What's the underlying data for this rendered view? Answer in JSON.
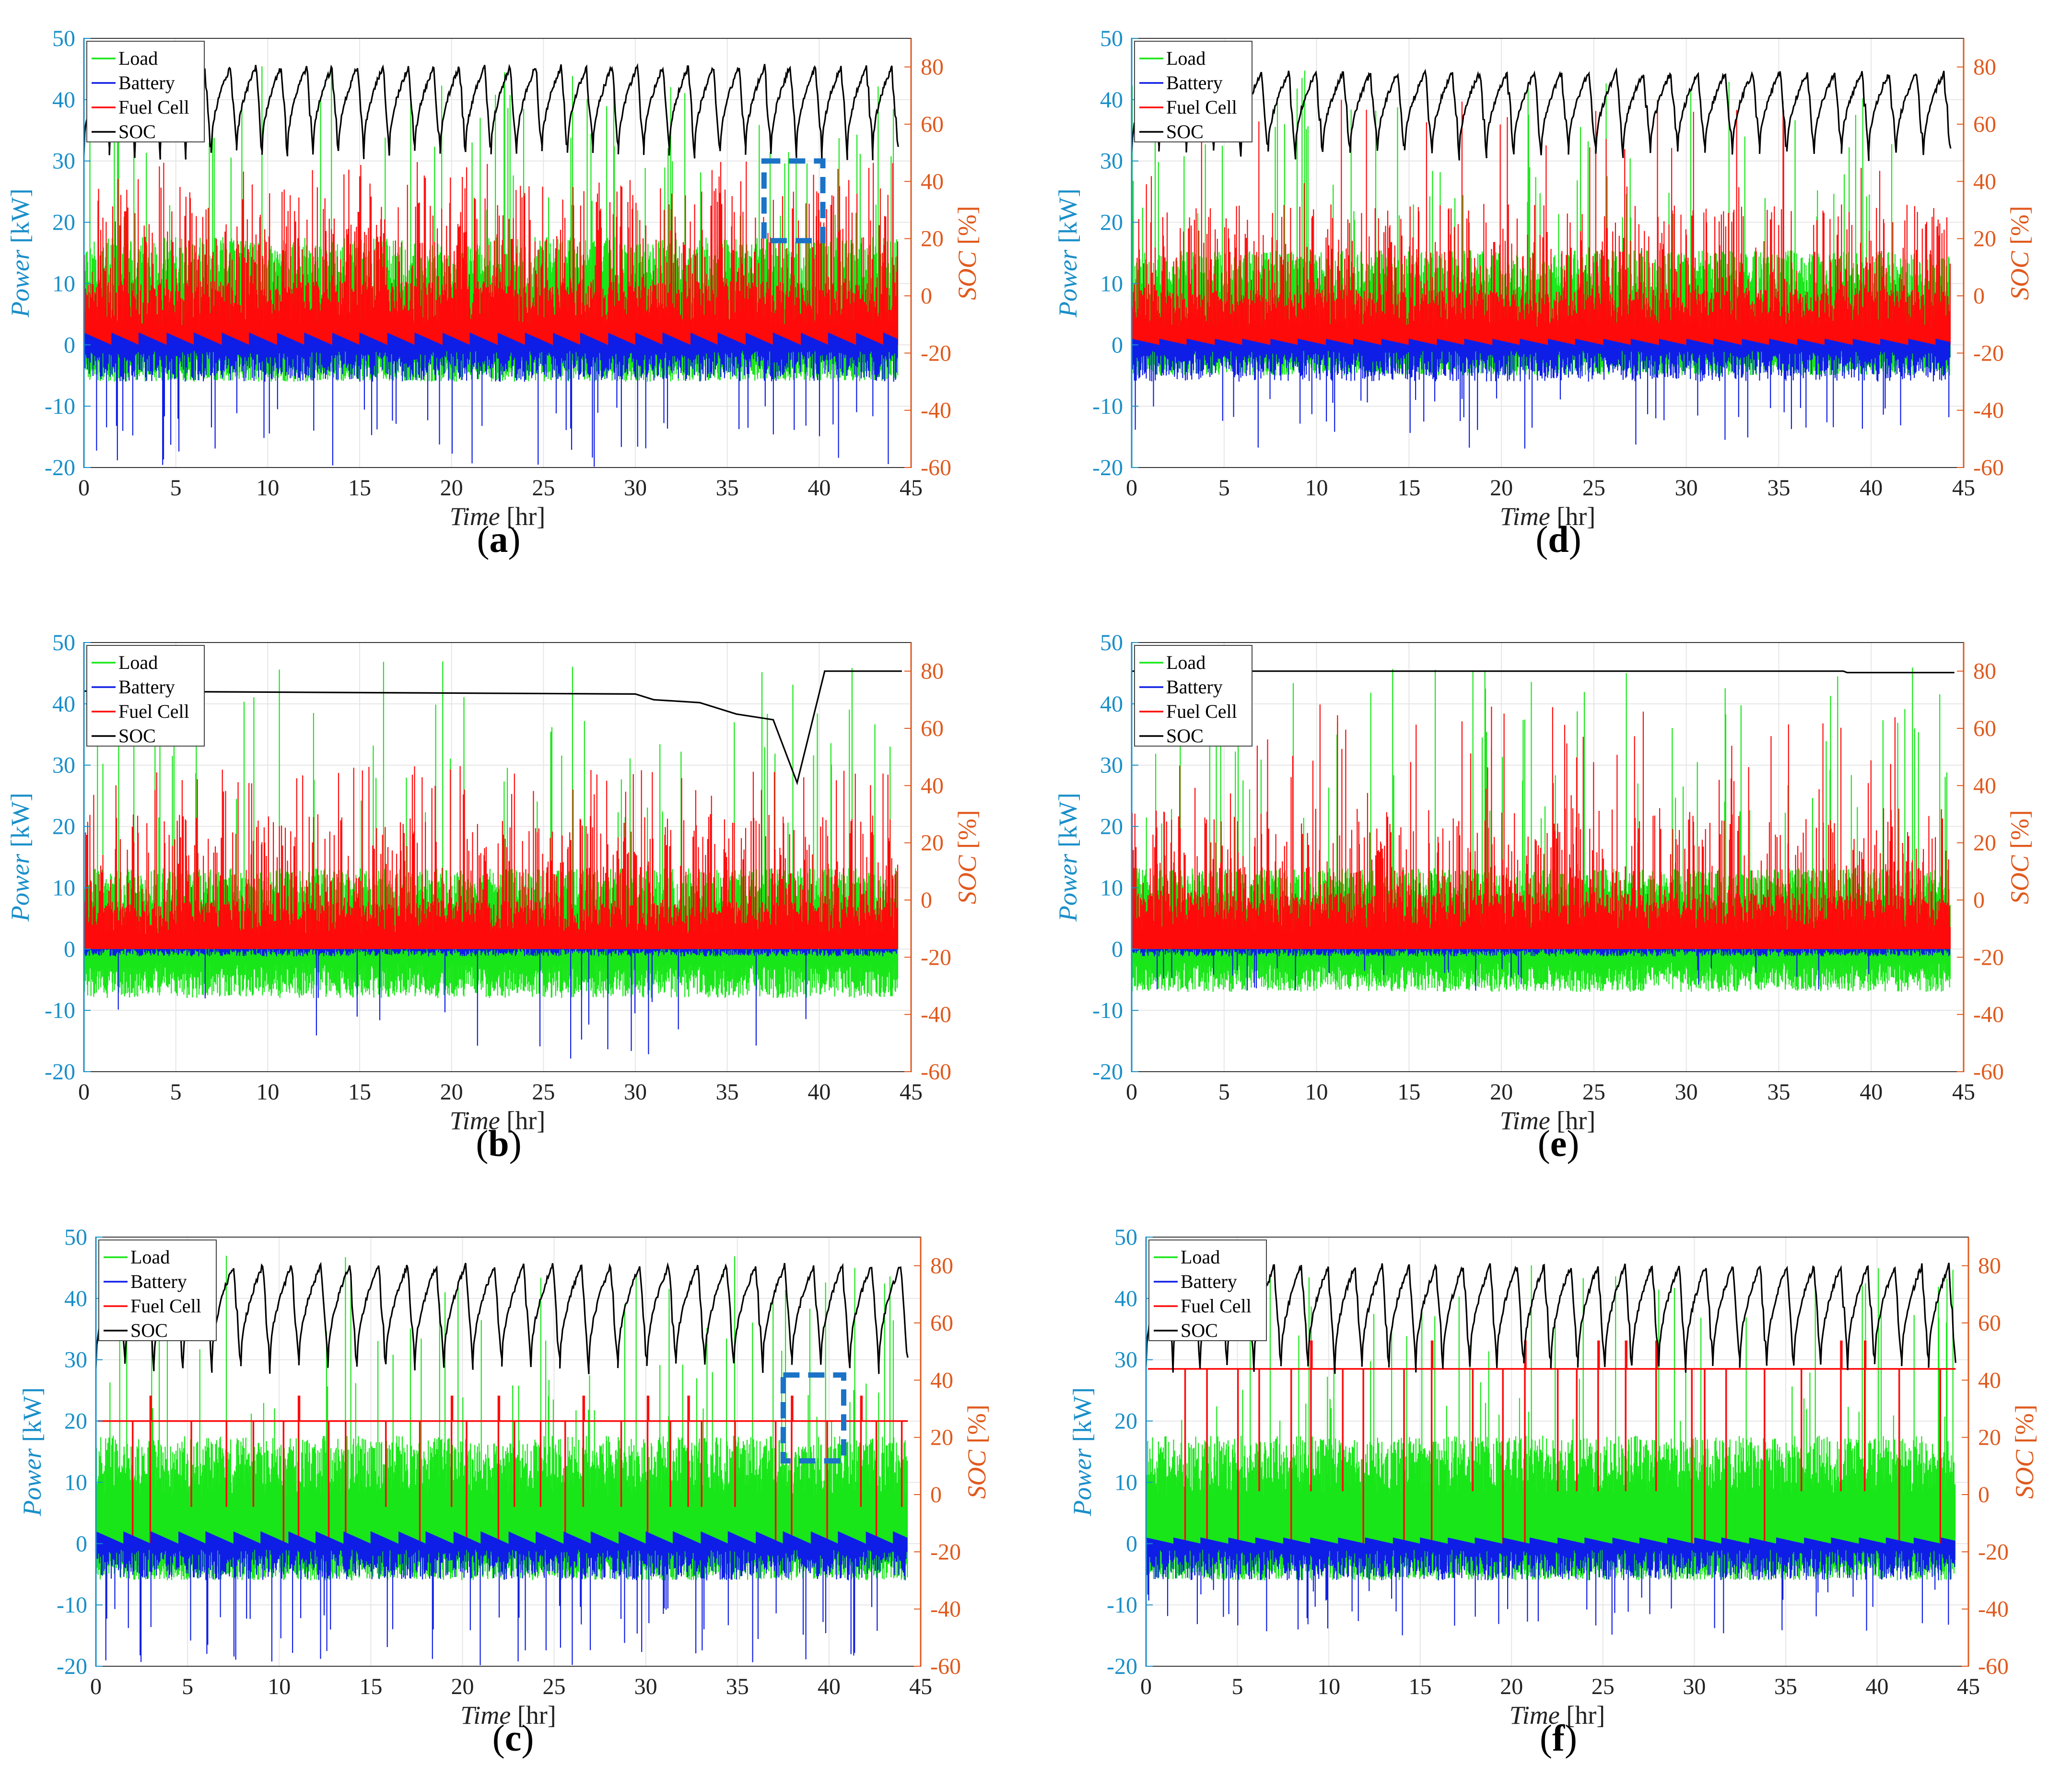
{
  "chart_data": [
    {
      "type": "line",
      "panel_id": "a",
      "caption": "a",
      "xlabel": "Time",
      "xlabel_unit": "[hr]",
      "ylabel": "Power",
      "ylabel_unit": "[kW]",
      "y2label": "SOC",
      "y2label_unit": "[%]",
      "xlim": [
        0,
        45
      ],
      "ylim": [
        -20,
        50
      ],
      "y2lim": [
        -60,
        90
      ],
      "xticks": [
        "0",
        "5",
        "10",
        "15",
        "20",
        "25",
        "30",
        "35",
        "40",
        "45"
      ],
      "yticks": [
        "-20",
        "-10",
        "0",
        "10",
        "20",
        "30",
        "40",
        "50"
      ],
      "y2ticks": [
        "-60",
        "-40",
        "-20",
        "0",
        "20",
        "40",
        "60",
        "80"
      ],
      "legend": [
        "Load",
        "Battery",
        "Fuel Cell",
        "SOC"
      ],
      "legend_position": "top-left",
      "grid": true,
      "soc_mode": "sawtooth",
      "soc_low": 50,
      "soc_high": 80,
      "soc_cycles": 32,
      "fc_mode": "spiky",
      "fc_base": 8,
      "fc_amp": 18,
      "fc_max": 30,
      "batt_mode": "spiky",
      "batt_min": -20,
      "batt_pos": 2,
      "load_base": 8,
      "load_neg": -6,
      "load_max": 47,
      "highlight_box": [
        37,
        40.2,
        17,
        30
      ]
    },
    {
      "type": "line",
      "panel_id": "b",
      "caption": "b",
      "xlabel": "Time",
      "xlabel_unit": "[hr]",
      "ylabel": "Power",
      "ylabel_unit": "[kW]",
      "y2label": "SOC",
      "y2label_unit": "[%]",
      "xlim": [
        0,
        45
      ],
      "ylim": [
        -20,
        50
      ],
      "y2lim": [
        -60,
        90
      ],
      "xticks": [
        "0",
        "5",
        "10",
        "15",
        "20",
        "25",
        "30",
        "35",
        "40",
        "45"
      ],
      "yticks": [
        "-20",
        "-10",
        "0",
        "10",
        "20",
        "30",
        "40",
        "50"
      ],
      "y2ticks": [
        "-60",
        "-40",
        "-20",
        "0",
        "20",
        "40",
        "60",
        "80"
      ],
      "legend": [
        "Load",
        "Battery",
        "Fuel Cell",
        "SOC"
      ],
      "legend_position": "top-left",
      "grid": true,
      "soc_mode": "stepdown",
      "soc_points": [
        [
          0,
          73
        ],
        [
          30,
          72
        ],
        [
          31,
          70
        ],
        [
          33.5,
          69
        ],
        [
          35.5,
          65
        ],
        [
          37.5,
          63
        ],
        [
          38.8,
          41
        ],
        [
          40.3,
          80
        ],
        [
          44.5,
          80
        ]
      ],
      "fc_mode": "spiky",
      "fc_base": 6,
      "fc_amp": 16,
      "fc_max": 30,
      "batt_mode": "sparse",
      "batt_min": -18,
      "batt_pos": 1,
      "load_base": 6,
      "load_neg": -8,
      "load_max": 47
    },
    {
      "type": "line",
      "panel_id": "c",
      "caption": "c",
      "xlabel": "Time",
      "xlabel_unit": "[hr]",
      "ylabel": "Power",
      "ylabel_unit": "[kW]",
      "y2label": "SOC",
      "y2label_unit": "[%]",
      "xlim": [
        0,
        45
      ],
      "ylim": [
        -20,
        50
      ],
      "y2lim": [
        -60,
        90
      ],
      "xticks": [
        "0",
        "5",
        "10",
        "15",
        "20",
        "25",
        "30",
        "35",
        "40",
        "45"
      ],
      "yticks": [
        "-20",
        "-10",
        "0",
        "10",
        "20",
        "30",
        "40",
        "50"
      ],
      "y2ticks": [
        "-60",
        "-40",
        "-20",
        "0",
        "20",
        "40",
        "60",
        "80"
      ],
      "legend": [
        "Load",
        "Battery",
        "Fuel Cell",
        "SOC"
      ],
      "legend_position": "top-left",
      "grid": true,
      "soc_mode": "sawtooth",
      "soc_low": 45,
      "soc_high": 80,
      "soc_cycles": 28,
      "fc_mode": "step",
      "fc_level": 20,
      "fc_peak": 24,
      "fc_low": 0,
      "batt_mode": "spiky",
      "batt_min": -20,
      "batt_pos": 2,
      "load_base": 8,
      "load_neg": -6,
      "load_max": 47,
      "highlight_box": [
        37.5,
        40.8,
        13.5,
        27.5
      ]
    },
    {
      "type": "line",
      "panel_id": "d",
      "caption": "d",
      "xlabel": "Time",
      "xlabel_unit": "[hr]",
      "ylabel": "Power",
      "ylabel_unit": "[kW]",
      "y2label": "SOC",
      "y2label_unit": "[%]",
      "xlim": [
        0,
        45
      ],
      "ylim": [
        -20,
        50
      ],
      "y2lim": [
        -60,
        90
      ],
      "xticks": [
        "0",
        "5",
        "10",
        "15",
        "20",
        "25",
        "30",
        "35",
        "40",
        "45"
      ],
      "yticks": [
        "-20",
        "-10",
        "0",
        "10",
        "20",
        "30",
        "40",
        "50"
      ],
      "y2ticks": [
        "-60",
        "-40",
        "-20",
        "0",
        "20",
        "40",
        "60",
        "80"
      ],
      "legend": [
        "Load",
        "Battery",
        "Fuel Cell",
        "SOC"
      ],
      "legend_position": "top-left",
      "grid": true,
      "soc_mode": "sawtooth",
      "soc_low": 50,
      "soc_high": 78,
      "soc_cycles": 30,
      "fc_mode": "spiky",
      "fc_base": 7,
      "fc_amp": 16,
      "fc_max": 40,
      "batt_mode": "spiky",
      "batt_min": -17,
      "batt_pos": 1,
      "load_base": 7,
      "load_neg": -5,
      "load_max": 46
    },
    {
      "type": "line",
      "panel_id": "e",
      "caption": "e",
      "xlabel": "Time",
      "xlabel_unit": "[hr]",
      "ylabel": "Power",
      "ylabel_unit": "[kW]",
      "y2label": "SOC",
      "y2label_unit": "[%]",
      "xlim": [
        0,
        45
      ],
      "ylim": [
        -20,
        50
      ],
      "y2lim": [
        -60,
        90
      ],
      "xticks": [
        "0",
        "5",
        "10",
        "15",
        "20",
        "25",
        "30",
        "35",
        "40",
        "45"
      ],
      "yticks": [
        "-20",
        "-10",
        "0",
        "10",
        "20",
        "30",
        "40",
        "50"
      ],
      "y2ticks": [
        "-60",
        "-40",
        "-20",
        "0",
        "20",
        "40",
        "60",
        "80"
      ],
      "legend": [
        "Load",
        "Battery",
        "Fuel Cell",
        "SOC"
      ],
      "legend_position": "top-left",
      "grid": true,
      "soc_mode": "flat",
      "soc_points": [
        [
          0,
          80
        ],
        [
          38.5,
          80
        ],
        [
          38.7,
          79.5
        ],
        [
          44.5,
          79.5
        ]
      ],
      "fc_mode": "spiky",
      "fc_base": 7,
      "fc_amp": 16,
      "fc_max": 40,
      "batt_mode": "sparse",
      "batt_min": -7,
      "batt_pos": 0.5,
      "load_base": 6,
      "load_neg": -7,
      "load_max": 46
    },
    {
      "type": "line",
      "panel_id": "f",
      "caption": "f",
      "xlabel": "Time",
      "xlabel_unit": "[hr]",
      "ylabel": "Power",
      "ylabel_unit": "[kW]",
      "y2label": "SOC",
      "y2label_unit": "[%]",
      "xlim": [
        0,
        45
      ],
      "ylim": [
        -20,
        50
      ],
      "y2lim": [
        -60,
        90
      ],
      "xticks": [
        "0",
        "5",
        "10",
        "15",
        "20",
        "25",
        "30",
        "35",
        "40",
        "45"
      ],
      "yticks": [
        "-20",
        "-10",
        "0",
        "10",
        "20",
        "30",
        "40",
        "50"
      ],
      "y2ticks": [
        "-60",
        "-40",
        "-20",
        "0",
        "20",
        "40",
        "60",
        "80"
      ],
      "legend": [
        "Load",
        "Battery",
        "Fuel Cell",
        "SOC"
      ],
      "legend_position": "top-left",
      "grid": true,
      "soc_mode": "sawtooth",
      "soc_low": 45,
      "soc_high": 80,
      "soc_cycles": 30,
      "fc_mode": "step",
      "fc_level": 28.5,
      "fc_peak": 33,
      "fc_low": 0,
      "batt_mode": "spiky",
      "batt_min": -15,
      "batt_pos": 1,
      "load_base": 8,
      "load_neg": -6,
      "load_max": 46
    }
  ],
  "colors": {
    "load": "#19e619",
    "battery": "#0f1ee6",
    "fuel_cell": "#ff0a0a",
    "soc": "#000000",
    "left_axis": "#1a8fc9",
    "right_axis": "#e05a1e",
    "highlight": "#1a73c7",
    "grid": "#e6e6e6"
  }
}
